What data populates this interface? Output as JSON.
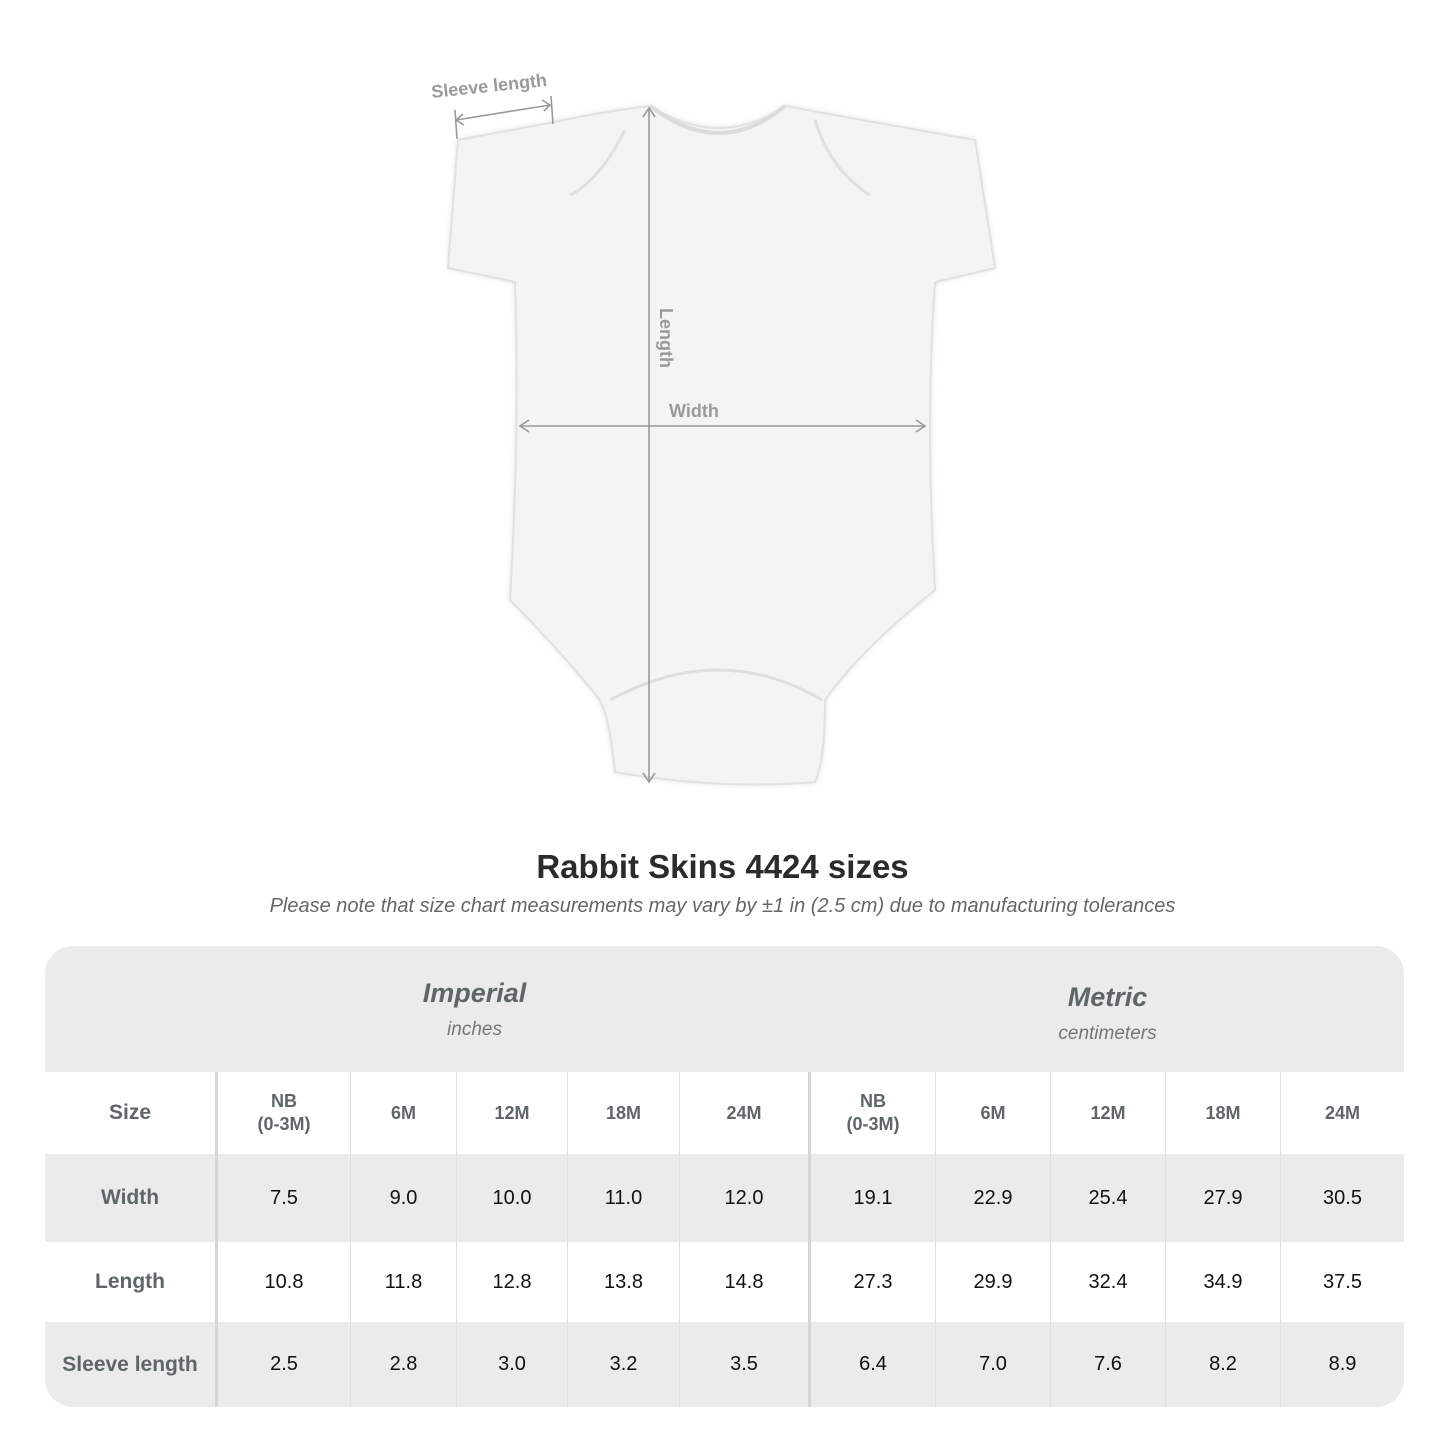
{
  "diagram": {
    "labels": {
      "sleeve": "Sleeve length",
      "length": "Length",
      "width": "Width"
    }
  },
  "title": "Rabbit Skins 4424 sizes",
  "note": "Please note that size chart measurements may vary by ±1 in (2.5 cm) due to manufacturing tolerances",
  "table": {
    "imperial": {
      "label": "Imperial",
      "unit": "inches"
    },
    "metric": {
      "label": "Metric",
      "unit": "centimeters"
    },
    "size_label": "Size",
    "sizes": [
      {
        "line1": "NB",
        "line2": "(0-3M)"
      },
      {
        "line1": "6M",
        "line2": ""
      },
      {
        "line1": "12M",
        "line2": ""
      },
      {
        "line1": "18M",
        "line2": ""
      },
      {
        "line1": "24M",
        "line2": ""
      }
    ],
    "rows": [
      {
        "label": "Width",
        "imperial": [
          "7.5",
          "9.0",
          "10.0",
          "11.0",
          "12.0"
        ],
        "metric": [
          "19.1",
          "22.9",
          "25.4",
          "27.9",
          "30.5"
        ]
      },
      {
        "label": "Length",
        "imperial": [
          "10.8",
          "11.8",
          "12.8",
          "13.8",
          "14.8"
        ],
        "metric": [
          "27.3",
          "29.9",
          "32.4",
          "34.9",
          "37.5"
        ]
      },
      {
        "label": "Sleeve length",
        "imperial": [
          "2.5",
          "2.8",
          "3.0",
          "3.2",
          "3.5"
        ],
        "metric": [
          "6.4",
          "7.0",
          "7.6",
          "8.2",
          "8.9"
        ]
      }
    ]
  }
}
